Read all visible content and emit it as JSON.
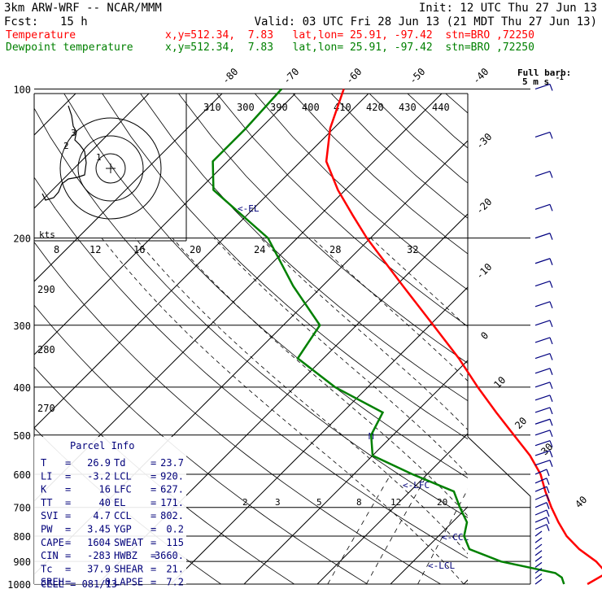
{
  "header": {
    "model": "3km ARW-WRF -- NCAR/MMM",
    "init": "Init: 12 UTC Thu 27 Jun 13",
    "fcst_label": "Fcst:",
    "fcst_value": "15 h",
    "valid": "Valid: 03 UTC Fri 28 Jun 13 (21 MDT Thu 27 Jun 13)",
    "temp_name": "Temperature",
    "temp_info": "x,y=512.34,  7.83   lat,lon= 25.91, -97.42  stn=BRO ,72250",
    "dew_name": "Dewpoint temperature",
    "dew_info": "x,y=512.34,  7.83   lat,lon= 25.91, -97.42  stn=BRO ,72250",
    "full_barb_1": "Full barb:",
    "full_barb_2": "5 m s",
    "full_barb_exp": "-1"
  },
  "colors": {
    "temperature": "#ff0000",
    "dewpoint": "#008000",
    "isotherm": "#000000",
    "wind": "#000080",
    "annotation": "#00007a",
    "text_blue": "#00007a"
  },
  "axis": {
    "pressure_ticks": [
      "100",
      "200",
      "300",
      "400",
      "500",
      "600",
      "700",
      "800",
      "900",
      "1000"
    ],
    "top_temp_labels": [
      "-80",
      "-70",
      "-60",
      "-50",
      "-40"
    ],
    "right_temp_labels": [
      "-30",
      "-20",
      "-10",
      "0",
      "10",
      "20",
      "30",
      "40"
    ],
    "theta_labels": [
      "310",
      "300",
      "390",
      "400",
      "410",
      "420",
      "430",
      "440"
    ],
    "mixing_labels": [
      "2",
      "3",
      "5",
      "8",
      "12",
      "20"
    ],
    "hodo_speed_labels": [
      "8",
      "12",
      "16",
      "20",
      "24",
      "28",
      "32"
    ],
    "hodo_unit": "kts",
    "left_theta_labels": [
      "290",
      "280",
      "270"
    ],
    "annotations": {
      "el": "<-EL",
      "lfc": "<-LFC",
      "ccl": "<-CCL",
      "lcl": "<-LCL",
      "m": "M"
    }
  },
  "parcel": {
    "title": "Parcel Info",
    "rows": [
      {
        "k1": "T",
        "v1": "26.9",
        "k2": "Td",
        "v2": "23.7"
      },
      {
        "k1": "LI",
        "v1": "-3.2",
        "k2": "LCL",
        "v2": "920."
      },
      {
        "k1": "K",
        "v1": "16",
        "k2": "LFC",
        "v2": "627."
      },
      {
        "k1": "TT",
        "v1": "40",
        "k2": "EL",
        "v2": "171."
      },
      {
        "k1": "SVI",
        "v1": "4.7",
        "k2": "CCL",
        "v2": "802."
      },
      {
        "k1": "PW",
        "v1": "3.45",
        "k2": "YGP",
        "v2": "0.2"
      },
      {
        "k1": "CAPE",
        "v1": "1604",
        "k2": "SWEAT",
        "v2": "115"
      },
      {
        "k1": "CIN",
        "v1": "-283",
        "k2": "HWBZ",
        "v2": "3660."
      },
      {
        "k1": "Tc",
        "v1": "37.9",
        "k2": "SHEAR",
        "v2": "21."
      },
      {
        "k1": "SREH",
        "v1": "0",
        "k2": "LAPSE",
        "v2": "7.2"
      }
    ],
    "cell": "CELL = 081/13"
  },
  "chart_data": {
    "type": "line",
    "title": "",
    "xlabel": "",
    "ylabel": "",
    "y_scale": "log-pressure (hPa), reversed",
    "x_skewed": true,
    "ylim": [
      1000,
      100
    ],
    "series": [
      {
        "name": "Temperature",
        "points": [
          [
            1000,
            26.9
          ],
          [
            950,
            28.0
          ],
          [
            900,
            25.0
          ],
          [
            850,
            21.0
          ],
          [
            800,
            17.5
          ],
          [
            750,
            14.5
          ],
          [
            700,
            11.5
          ],
          [
            650,
            8.5
          ],
          [
            600,
            5.5
          ],
          [
            550,
            1.5
          ],
          [
            500,
            -3.5
          ],
          [
            450,
            -9.0
          ],
          [
            400,
            -15.0
          ],
          [
            350,
            -21.5
          ],
          [
            300,
            -29.5
          ],
          [
            250,
            -39.0
          ],
          [
            200,
            -50.5
          ],
          [
            180,
            -55.5
          ],
          [
            160,
            -61.0
          ],
          [
            140,
            -66.5
          ],
          [
            120,
            -70.5
          ],
          [
            100,
            -74.0
          ]
        ]
      },
      {
        "name": "Dewpoint temperature",
        "points": [
          [
            1000,
            23.7
          ],
          [
            970,
            22.5
          ],
          [
            950,
            21.0
          ],
          [
            900,
            12.0
          ],
          [
            850,
            6.0
          ],
          [
            800,
            3.5
          ],
          [
            750,
            2.0
          ],
          [
            700,
            -1.0
          ],
          [
            650,
            -4.0
          ],
          [
            600,
            -12.0
          ],
          [
            550,
            -20.0
          ],
          [
            500,
            -23.0
          ],
          [
            450,
            -24.5
          ],
          [
            400,
            -34.5
          ],
          [
            350,
            -43.5
          ],
          [
            300,
            -45.0
          ],
          [
            250,
            -54.0
          ],
          [
            200,
            -64.0
          ],
          [
            160,
            -78.0
          ],
          [
            140,
            -82.0
          ],
          [
            120,
            -82.0
          ],
          [
            100,
            -82.5
          ]
        ]
      }
    ]
  }
}
